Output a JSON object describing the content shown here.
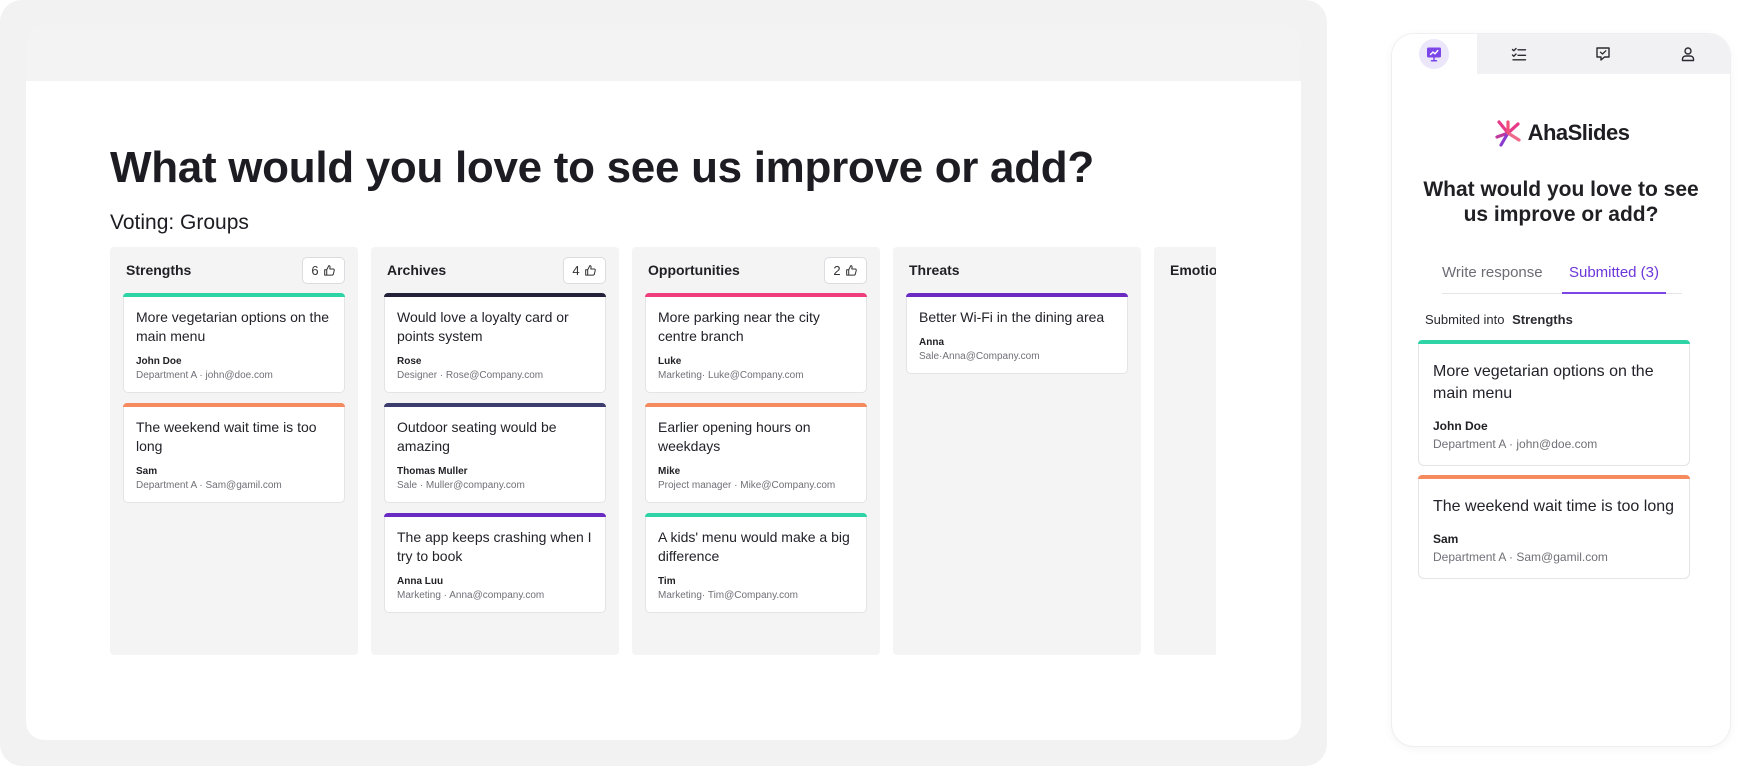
{
  "slide": {
    "title": "What would you love to see us improve or add?",
    "voting_label": "Voting: Groups"
  },
  "columns": [
    {
      "name": "Strengths",
      "votes": "6",
      "cards": [
        {
          "text": "More vegetarian options on the main menu",
          "author": "John Doe",
          "meta": "Department A · john@doe.com",
          "color": "#2ed3a6"
        },
        {
          "text": "The weekend wait time is too long",
          "author": "Sam",
          "meta": "Department A · Sam@gamil.com",
          "color": "#f48a5e"
        }
      ]
    },
    {
      "name": "Archives",
      "votes": "4",
      "cards": [
        {
          "text": "Would love a loyalty card or points system",
          "author": "Rose",
          "meta": "Designer · Rose@Company.com",
          "color": "#23223a"
        },
        {
          "text": "Outdoor seating would be amazing",
          "author": "Thomas Muller",
          "meta": "Sale · Muller@company.com",
          "color": "#3d3c6e"
        },
        {
          "text": "The app keeps crashing when I try to book",
          "author": "Anna Luu",
          "meta": "Marketing · Anna@company.com",
          "color": "#6a2bc2"
        }
      ]
    },
    {
      "name": "Opportunities",
      "votes": "2",
      "cards": [
        {
          "text": "More parking near the city centre branch",
          "author": "Luke",
          "meta": "Marketing· Luke@Company.com",
          "color": "#ee3e7c"
        },
        {
          "text": "Earlier opening hours on weekdays",
          "author": "Mike",
          "meta": "Project manager · Mike@Company.com",
          "color": "#f48a5e"
        },
        {
          "text": "A kids' menu would make a big difference",
          "author": "Tim",
          "meta": "Marketing· Tim@Company.com",
          "color": "#2ed3a6"
        }
      ]
    },
    {
      "name": "Threats",
      "votes": "",
      "cards": [
        {
          "text": "Better Wi-Fi in the dining area",
          "author": "Anna",
          "meta": "Sale·Anna@Company.com",
          "color": "#6a2bc2"
        }
      ]
    },
    {
      "name": "Emotions",
      "votes": "",
      "cards": []
    }
  ],
  "phone": {
    "tabs": [
      {
        "icon": "presentation-icon",
        "active": true
      },
      {
        "icon": "checklist-icon",
        "active": false
      },
      {
        "icon": "chat-icon",
        "active": false
      },
      {
        "icon": "user-icon",
        "active": false
      }
    ],
    "brand": "AhaSlides",
    "question": "What would you love to see us improve or add?",
    "write_tab": "Write response",
    "submitted_tab": "Submitted (3)",
    "submitted_into_label": "Submited into",
    "submitted_into_group": "Strengths",
    "cards": [
      {
        "text": "More vegetarian options on the main menu",
        "author": "John Doe",
        "meta": "Department A · john@doe.com",
        "color": "#2ed3a6"
      },
      {
        "text": "The weekend wait time is too long",
        "author": "Sam",
        "meta": "Department A · Sam@gamil.com",
        "color": "#f48a5e"
      }
    ]
  },
  "colors": {
    "accent": "#7c45e8",
    "brand_pink": "#e73a8a"
  }
}
